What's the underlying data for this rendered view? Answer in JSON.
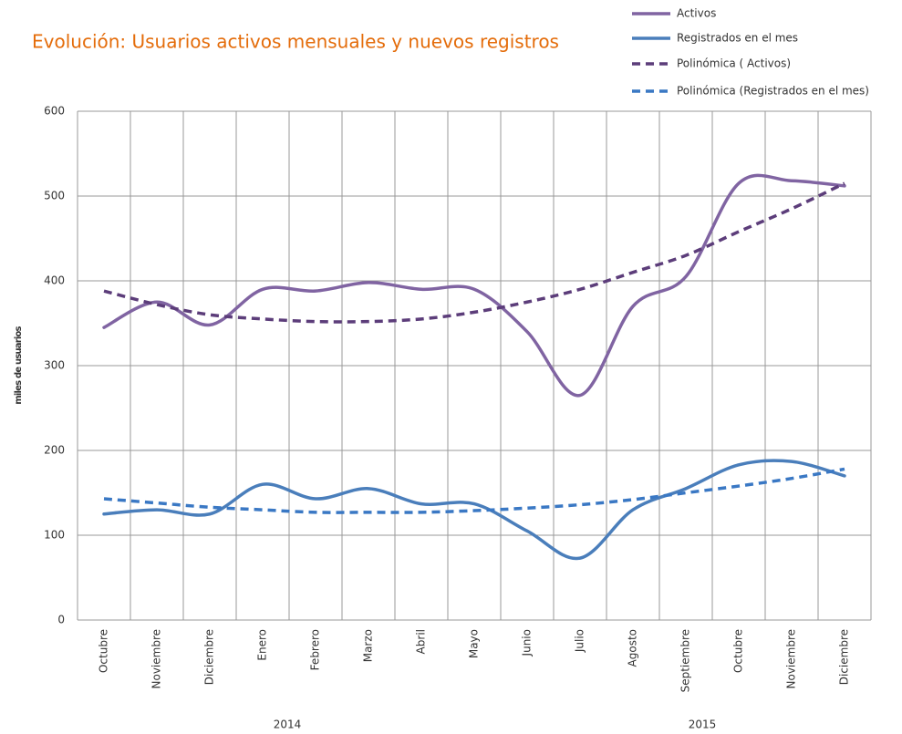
{
  "chart_data": {
    "type": "line",
    "title": "Evolución: Usuarios activos mensuales y nuevos registros",
    "y_label": "miles de usuarios",
    "categories": [
      "Octubre",
      "Noviembre",
      "Diciembre",
      "Enero",
      "Febrero",
      "Marzo",
      "Abril",
      "Mayo",
      "Junio",
      "Julio",
      "Agosto",
      "Septiembre",
      "Octubre",
      "Noviembre",
      "Diciembre"
    ],
    "year_labels": [
      "2014",
      "2015"
    ],
    "series": [
      {
        "name": "Activos",
        "color": "#8064a2",
        "dashed": false,
        "values": [
          345,
          375,
          348,
          390,
          388,
          398,
          390,
          390,
          340,
          265,
          370,
          405,
          515,
          518,
          512
        ]
      },
      {
        "name": "Registrados en el mes",
        "color": "#4a7ebb",
        "dashed": false,
        "values": [
          125,
          130,
          125,
          160,
          143,
          155,
          137,
          137,
          105,
          73,
          130,
          155,
          183,
          187,
          170
        ]
      },
      {
        "name": "Polinómica ( Activos)",
        "color": "#5c3d7a",
        "dashed": true,
        "values": [
          388,
          372,
          360,
          355,
          352,
          352,
          355,
          363,
          375,
          390,
          410,
          430,
          458,
          485,
          515
        ]
      },
      {
        "name": "Polinómica (Registrados en el mes)",
        "color": "#3a78c4",
        "dashed": true,
        "values": [
          143,
          138,
          133,
          130,
          127,
          127,
          127,
          129,
          132,
          136,
          142,
          150,
          158,
          167,
          178
        ]
      }
    ],
    "ylim": [
      0,
      600
    ],
    "yticks": [
      0,
      100,
      200,
      300,
      400,
      500,
      600
    ],
    "grid": true
  }
}
